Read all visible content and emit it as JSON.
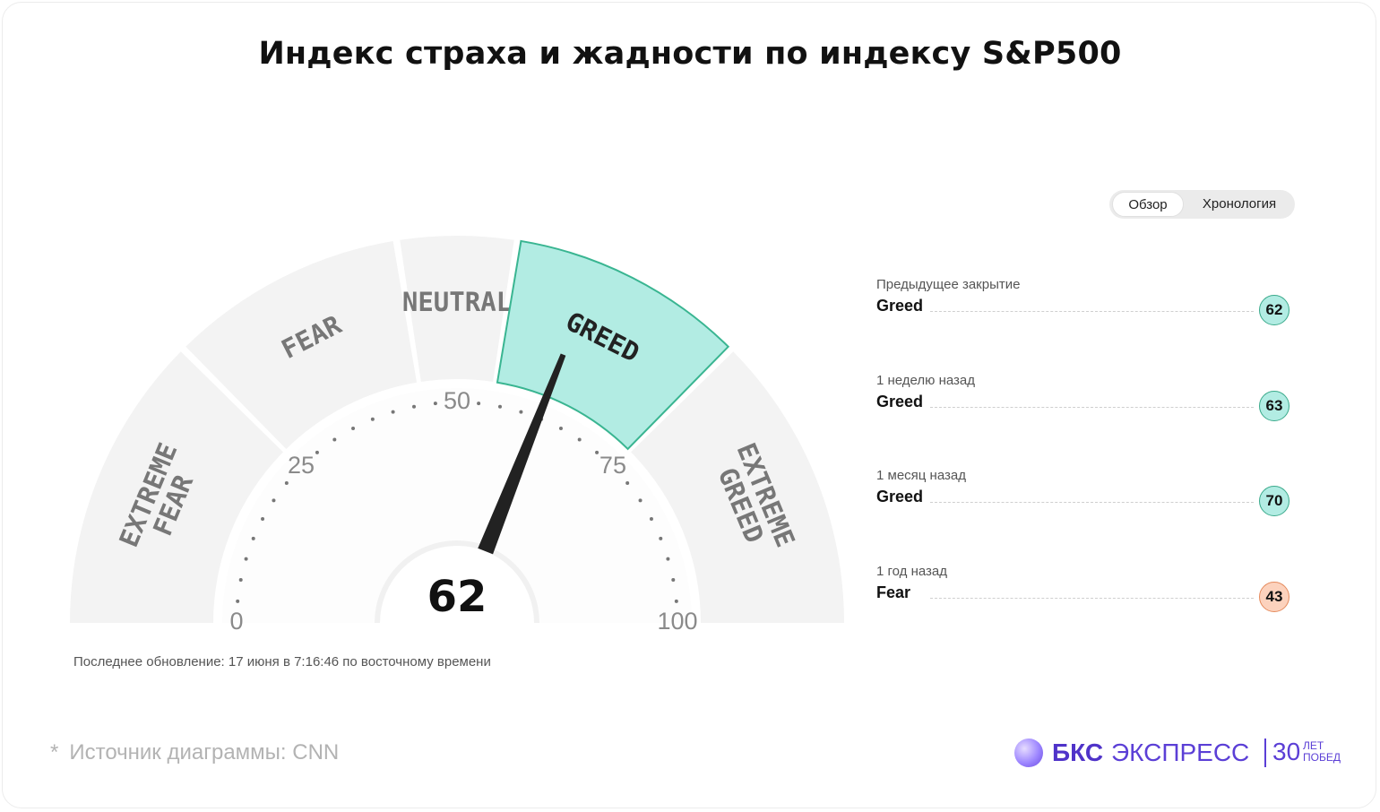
{
  "title": "Индекс страха и жадности по индексу S&P500",
  "chart_data": {
    "type": "gauge",
    "value": 62,
    "range": [
      0,
      100
    ],
    "ticks": [
      "0",
      "25",
      "50",
      "75",
      "100"
    ],
    "segments": [
      {
        "label": [
          "EXTREME",
          "FEAR"
        ],
        "from": 0,
        "to": 25
      },
      {
        "label": [
          "FEAR"
        ],
        "from": 25,
        "to": 45
      },
      {
        "label": [
          "NEUTRAL"
        ],
        "from": 45,
        "to": 55
      },
      {
        "label": [
          "GREED"
        ],
        "from": 55,
        "to": 75
      },
      {
        "label": [
          "EXTREME",
          "GREED"
        ],
        "from": 75,
        "to": 100
      }
    ],
    "active_segment": 3,
    "colors": {
      "segment": "#f3f3f3",
      "active_fill": "#b2ece3",
      "active_stroke": "#39b591",
      "segment_text": "#777777",
      "active_text": "#222222",
      "needle": "#222222",
      "ticks": "#8a8a8a",
      "dots": "#777777"
    }
  },
  "last_updated": "Последнее обновление: 17 июня в 7:16:46 по восточному времени",
  "toggle": {
    "overview": "Обзор",
    "timeline": "Хронология"
  },
  "history": [
    {
      "label": "Предыдущее закрытие",
      "rating": "Greed",
      "value": "62",
      "color": "#b2ece3",
      "border": "#39a98a"
    },
    {
      "label": "1 неделю назад",
      "rating": "Greed",
      "value": "63",
      "color": "#b2ece3",
      "border": "#39a98a"
    },
    {
      "label": "1 месяц назад",
      "rating": "Greed",
      "value": "70",
      "color": "#b2ece3",
      "border": "#39a98a"
    },
    {
      "label": "1 год назад",
      "rating": "Fear",
      "value": "43",
      "color": "#fcd2bd",
      "border": "#e58a5c"
    }
  ],
  "source": {
    "star": "*",
    "text": "Источник диаграммы: CNN"
  },
  "brand": {
    "bks": "БКС",
    "express": "ЭКСПРЕСС",
    "years": "30",
    "years_caption_1": "ЛЕТ",
    "years_caption_2": "ПОБЕД"
  }
}
